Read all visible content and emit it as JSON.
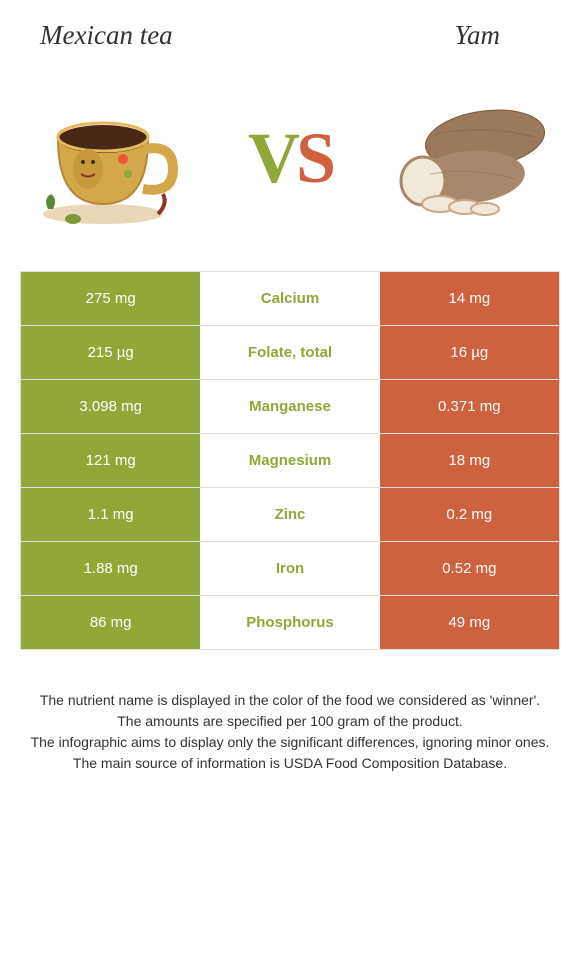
{
  "header": {
    "left_title": "Mexican tea",
    "right_title": "Yam"
  },
  "vs": {
    "v": "V",
    "s": "S"
  },
  "colors": {
    "left": "#8fa838",
    "right": "#d0613e",
    "mid_bg": "#ffffff"
  },
  "nutrients": [
    {
      "left": "275 mg",
      "label": "Calcium",
      "right": "14 mg",
      "winner": "left"
    },
    {
      "left": "215 µg",
      "label": "Folate, total",
      "right": "16 µg",
      "winner": "left"
    },
    {
      "left": "3.098 mg",
      "label": "Manganese",
      "right": "0.371 mg",
      "winner": "left"
    },
    {
      "left": "121 mg",
      "label": "Magnesium",
      "right": "18 mg",
      "winner": "left"
    },
    {
      "left": "1.1 mg",
      "label": "Zinc",
      "right": "0.2 mg",
      "winner": "left"
    },
    {
      "left": "1.88 mg",
      "label": "Iron",
      "right": "0.52 mg",
      "winner": "left"
    },
    {
      "left": "86 mg",
      "label": "Phosphorus",
      "right": "49 mg",
      "winner": "left"
    }
  ],
  "footer": {
    "line1": "The nutrient name is displayed in the color of the food we considered as 'winner'.",
    "line2": "The amounts are specified per 100 gram of the product.",
    "line3": "The infographic aims to display only the significant differences, ignoring minor ones.",
    "line4": "The main source of information is USDA Food Composition Database."
  }
}
